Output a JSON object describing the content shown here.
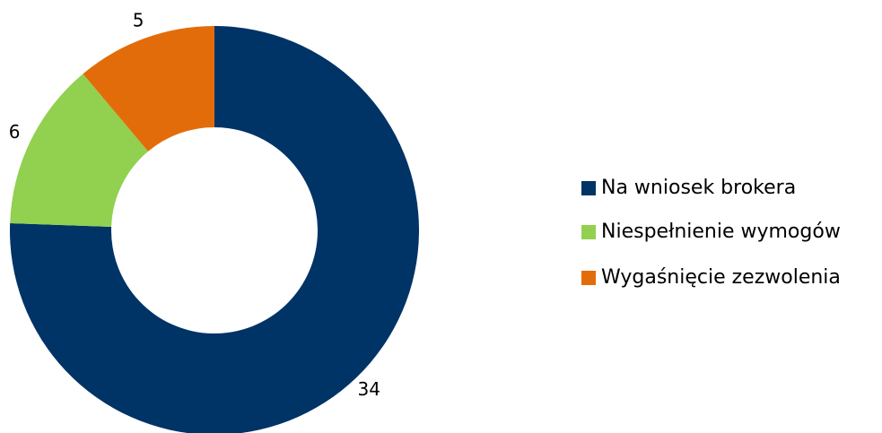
{
  "chart_data": {
    "type": "donut",
    "categories": [
      "Na wniosek brokera",
      "Niespełnienie wymogów",
      "Wygaśnięcie zezwolenia"
    ],
    "values": [
      34,
      6,
      5
    ],
    "colors": [
      "#003366",
      "#92d050",
      "#e36c0a"
    ],
    "legend": "right"
  }
}
